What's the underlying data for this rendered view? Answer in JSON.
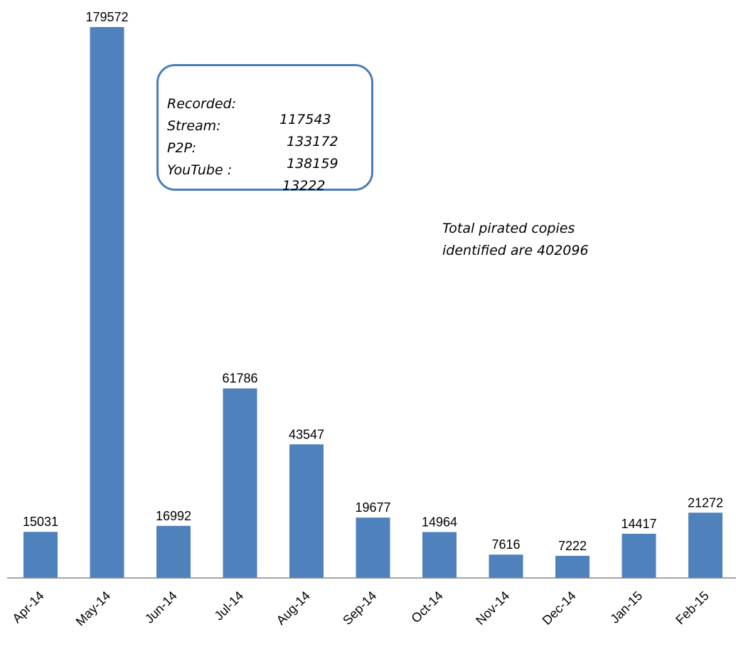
{
  "chart_data": {
    "type": "bar",
    "categories": [
      "Apr-14",
      "May-14",
      "Jun-14",
      "Jul-14",
      "Aug-14",
      "Sep-14",
      "Oct-14",
      "Nov-14",
      "Dec-14",
      "Jan-15",
      "Feb-15"
    ],
    "values": [
      15031,
      179572,
      16992,
      61786,
      43547,
      19677,
      14964,
      7616,
      7222,
      14417,
      21272
    ],
    "data_labels": [
      "15031",
      "179572",
      "16992",
      "61786",
      "43547",
      "19677",
      "14964",
      "7616",
      "7222",
      "14417",
      "21272"
    ],
    "ylim": [
      0,
      179572
    ],
    "grid": false,
    "bar_color": "#4f81bd",
    "annotation_box": {
      "rows": [
        {
          "label": "Recorded:",
          "value": "117543"
        },
        {
          "label": "Stream:",
          "value": "133172"
        },
        {
          "label": "P2P:",
          "value": "138159"
        },
        {
          "label": "YouTube :",
          "value": "13222"
        }
      ],
      "border_color": "#4a7ebb"
    },
    "total_note": {
      "line1": "Total pirated copies",
      "line2": "identified are 402096"
    }
  }
}
